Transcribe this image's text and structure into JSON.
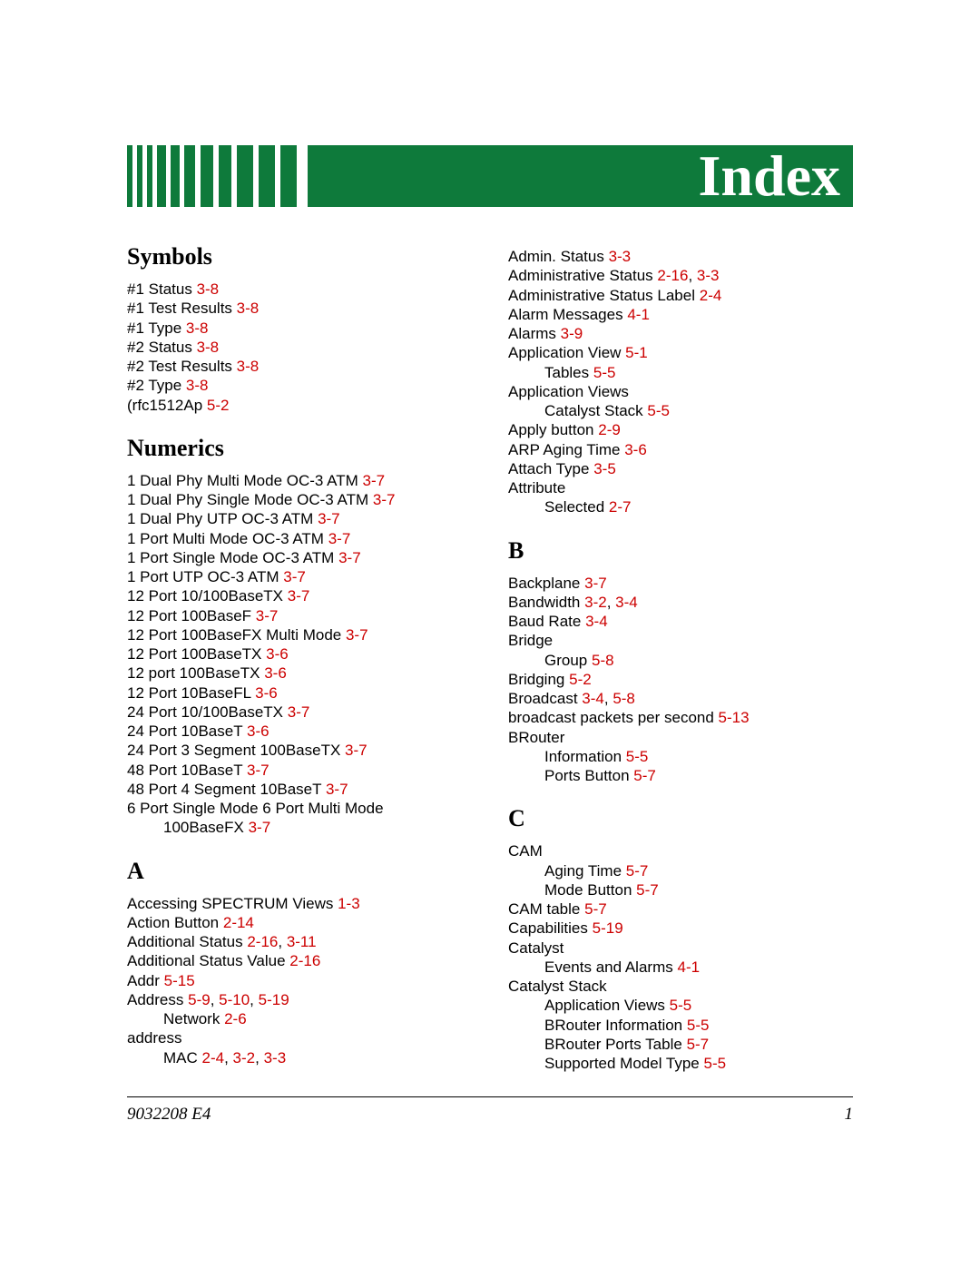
{
  "header": {
    "title": "Index",
    "bg_color": "#0e7a3b",
    "title_color": "#ffffff",
    "title_fontsize": 64
  },
  "link_color": "#cc0000",
  "footer": {
    "doc_id": "9032208 E4",
    "page_num": "1"
  },
  "columns": [
    {
      "sections": [
        {
          "heading": "Symbols",
          "entries": [
            {
              "text": "#1 Status",
              "refs": [
                "3-8"
              ]
            },
            {
              "text": "#1 Test Results",
              "refs": [
                "3-8"
              ]
            },
            {
              "text": "#1 Type",
              "refs": [
                "3-8"
              ]
            },
            {
              "text": "#2 Status",
              "refs": [
                "3-8"
              ]
            },
            {
              "text": "#2 Test Results",
              "refs": [
                "3-8"
              ]
            },
            {
              "text": "#2 Type",
              "refs": [
                "3-8"
              ]
            },
            {
              "text": "(rfc1512Ap",
              "refs": [
                "5-2"
              ]
            }
          ]
        },
        {
          "heading": "Numerics",
          "entries": [
            {
              "text": "1 Dual Phy Multi Mode OC-3 ATM",
              "refs": [
                "3-7"
              ]
            },
            {
              "text": "1 Dual Phy Single Mode OC-3 ATM",
              "refs": [
                "3-7"
              ]
            },
            {
              "text": "1 Dual Phy UTP OC-3 ATM",
              "refs": [
                "3-7"
              ]
            },
            {
              "text": "1 Port Multi Mode OC-3 ATM",
              "refs": [
                "3-7"
              ]
            },
            {
              "text": "1 Port Single Mode OC-3 ATM",
              "refs": [
                "3-7"
              ]
            },
            {
              "text": "1 Port UTP OC-3 ATM",
              "refs": [
                "3-7"
              ]
            },
            {
              "text": "12 Port 10/100BaseTX",
              "refs": [
                "3-7"
              ]
            },
            {
              "text": "12 Port 100BaseF",
              "refs": [
                "3-7"
              ]
            },
            {
              "text": "12 Port 100BaseFX Multi Mode",
              "refs": [
                "3-7"
              ]
            },
            {
              "text": "12 Port 100BaseTX",
              "refs": [
                "3-6"
              ]
            },
            {
              "text": "12 port 100BaseTX",
              "refs": [
                "3-6"
              ]
            },
            {
              "text": "12 Port 10BaseFL",
              "refs": [
                "3-6"
              ]
            },
            {
              "text": "24 Port 10/100BaseTX",
              "refs": [
                "3-7"
              ]
            },
            {
              "text": "24 Port 10BaseT",
              "refs": [
                "3-6"
              ]
            },
            {
              "text": "24 Port 3 Segment 100BaseTX",
              "refs": [
                "3-7"
              ]
            },
            {
              "text": "48 Port 10BaseT",
              "refs": [
                "3-7"
              ]
            },
            {
              "text": "48 Port 4 Segment 10BaseT",
              "refs": [
                "3-7"
              ]
            },
            {
              "text": "6 Port Single Mode 6 Port Multi Mode"
            },
            {
              "text": "100BaseFX",
              "refs": [
                "3-7"
              ],
              "indent": true
            }
          ]
        },
        {
          "heading": "A",
          "entries": [
            {
              "text": "Accessing SPECTRUM Views",
              "refs": [
                "1-3"
              ]
            },
            {
              "text": "Action Button",
              "refs": [
                "2-14"
              ]
            },
            {
              "text": "Additional Status",
              "refs": [
                "2-16",
                "3-11"
              ]
            },
            {
              "text": "Additional Status Value",
              "refs": [
                "2-16"
              ]
            },
            {
              "text": "Addr",
              "refs": [
                "5-15"
              ]
            },
            {
              "text": "Address",
              "refs": [
                "5-9",
                "5-10",
                "5-19"
              ]
            },
            {
              "text": "Network",
              "refs": [
                "2-6"
              ],
              "indent": true
            },
            {
              "text": "address"
            },
            {
              "text": "MAC",
              "refs": [
                "2-4",
                "3-2",
                "3-3"
              ],
              "indent": true
            }
          ]
        }
      ]
    },
    {
      "sections": [
        {
          "heading": "",
          "entries": [
            {
              "text": "Admin. Status",
              "refs": [
                "3-3"
              ]
            },
            {
              "text": "Administrative Status",
              "refs": [
                "2-16",
                "3-3"
              ]
            },
            {
              "text": "Administrative Status Label",
              "refs": [
                "2-4"
              ]
            },
            {
              "text": "Alarm Messages",
              "refs": [
                "4-1"
              ]
            },
            {
              "text": "Alarms",
              "refs": [
                "3-9"
              ]
            },
            {
              "text": "Application View",
              "refs": [
                "5-1"
              ]
            },
            {
              "text": "Tables",
              "refs": [
                "5-5"
              ],
              "indent": true
            },
            {
              "text": "Application Views"
            },
            {
              "text": "Catalyst Stack",
              "refs": [
                "5-5"
              ],
              "indent": true
            },
            {
              "text": "Apply button",
              "refs": [
                "2-9"
              ]
            },
            {
              "text": "ARP Aging Time",
              "refs": [
                "3-6"
              ]
            },
            {
              "text": "Attach Type",
              "refs": [
                "3-5"
              ]
            },
            {
              "text": "Attribute"
            },
            {
              "text": "Selected",
              "refs": [
                "2-7"
              ],
              "indent": true
            }
          ]
        },
        {
          "heading": "B",
          "entries": [
            {
              "text": "Backplane",
              "refs": [
                "3-7"
              ]
            },
            {
              "text": "Bandwidth",
              "refs": [
                "3-2",
                "3-4"
              ]
            },
            {
              "text": "Baud Rate",
              "refs": [
                "3-4"
              ]
            },
            {
              "text": "Bridge"
            },
            {
              "text": "Group",
              "refs": [
                "5-8"
              ],
              "indent": true
            },
            {
              "text": "Bridging",
              "refs": [
                "5-2"
              ]
            },
            {
              "text": "Broadcast",
              "refs": [
                "3-4",
                "5-8"
              ]
            },
            {
              "text": "broadcast packets per second",
              "refs": [
                "5-13"
              ]
            },
            {
              "text": "BRouter"
            },
            {
              "text": "Information",
              "refs": [
                "5-5"
              ],
              "indent": true
            },
            {
              "text": "Ports Button",
              "refs": [
                "5-7"
              ],
              "indent": true
            }
          ]
        },
        {
          "heading": "C",
          "entries": [
            {
              "text": "CAM"
            },
            {
              "text": "Aging Time",
              "refs": [
                "5-7"
              ],
              "indent": true
            },
            {
              "text": "Mode Button",
              "refs": [
                "5-7"
              ],
              "indent": true
            },
            {
              "text": "CAM table",
              "refs": [
                "5-7"
              ]
            },
            {
              "text": "Capabilities",
              "refs": [
                "5-19"
              ]
            },
            {
              "text": "Catalyst"
            },
            {
              "text": "Events and Alarms",
              "refs": [
                "4-1"
              ],
              "indent": true
            },
            {
              "text": "Catalyst Stack"
            },
            {
              "text": "Application Views",
              "refs": [
                "5-5"
              ],
              "indent": true
            },
            {
              "text": "BRouter Information",
              "refs": [
                "5-5"
              ],
              "indent": true
            },
            {
              "text": "BRouter Ports Table",
              "refs": [
                "5-7"
              ],
              "indent": true
            },
            {
              "text": "Supported Model Type",
              "refs": [
                "5-5"
              ],
              "indent": true
            }
          ]
        }
      ]
    }
  ]
}
